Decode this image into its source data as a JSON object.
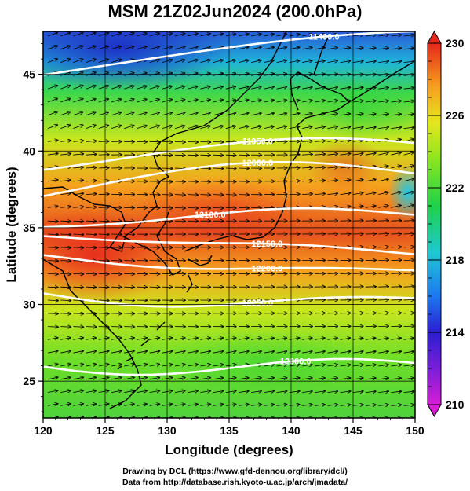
{
  "title": "MSM 21Z02Jun2024 (200.0hPa)",
  "map": {
    "xlabel": "Longitude (degrees)",
    "ylabel": "Latitude  (degrees)",
    "lon_range": [
      120,
      150
    ],
    "lat_range": [
      22.6,
      47.8
    ],
    "lon_ticks": [
      "120",
      "125",
      "130",
      "135",
      "140",
      "145",
      "150"
    ],
    "lat_ticks": [
      "25",
      "30",
      "35",
      "40",
      "45"
    ],
    "grid": true
  },
  "colorbar": {
    "min": 210,
    "max": 230,
    "tick_labels": [
      "230",
      "226",
      "222",
      "218",
      "214",
      "210"
    ],
    "palette": [
      "#d61ed6",
      "#2a1ed0",
      "#1e78f0",
      "#1ec8d2",
      "#1ed24a",
      "#8ce61e",
      "#e6e61e",
      "#f5a01e",
      "#e6281e"
    ]
  },
  "contours": [
    {
      "label": "11400.0",
      "lat": 46.2
    },
    {
      "label": "11950.0",
      "lat": 39.6
    },
    {
      "label": "12000.0",
      "lat": 37.9
    },
    {
      "label": "12100.0",
      "lat": 35.6
    },
    {
      "label": "12150.0",
      "lat": 33.9
    },
    {
      "label": "12200.0",
      "lat": 32.6
    },
    {
      "label": "12250.0",
      "lat": 30.4
    },
    {
      "label": "12300.0",
      "lat": 26.0
    }
  ],
  "credits": {
    "line1": "Drawing by DCL (https://www.gfd-dennou.org/library/dcl/)",
    "line2": "Data from http://database.rish.kyoto-u.ac.jp/arch/jmadata/"
  }
}
